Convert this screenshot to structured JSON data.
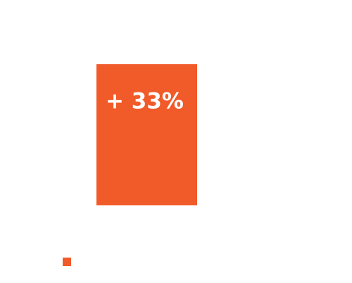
{
  "chart_data": {
    "type": "bar",
    "categories": [
      null
    ],
    "values": [
      33
    ],
    "value_labels": [
      "+ 33%"
    ],
    "color": "#f15a29",
    "legend": true
  }
}
